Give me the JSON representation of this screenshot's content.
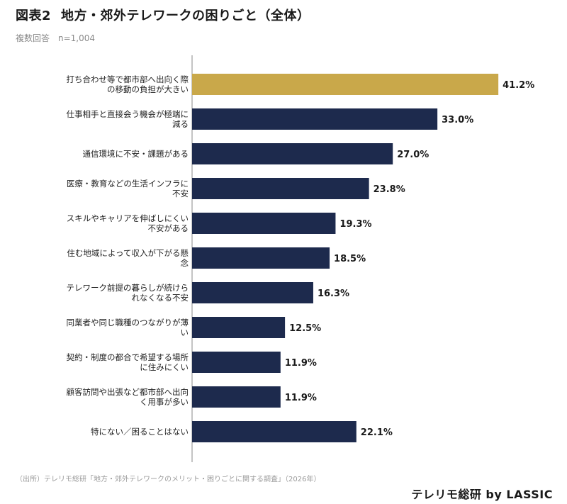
{
  "header": {
    "figure_number": "図表2",
    "title": "地方・郊外テレワークの困りごと（全体）",
    "answer_type": "複数回答",
    "sample_size": "n=1,004"
  },
  "footer": {
    "source": "（出所）テレリモ総研「地方・郊外テレワークのメリット・困りごとに関する調査」（2026年）",
    "brand": "テレリモ総研 by LASSIC"
  },
  "colors": {
    "highlight_bar": "#c9a84a",
    "bar": "#1d2a4d",
    "axis": "#888888"
  },
  "chart_data": {
    "type": "bar",
    "orientation": "horizontal",
    "unit": "%",
    "xlim": [
      0,
      45
    ],
    "grid": false,
    "highlight_index": 0,
    "categories": [
      [
        "打ち合わせ等で都市部へ出向く際",
        "の移動の負担が大きい"
      ],
      [
        "仕事相手と直接会う機会が極端に",
        "減る"
      ],
      [
        "通信環境に不安・課題がある"
      ],
      [
        "医療・教育などの生活インフラに",
        "不安"
      ],
      [
        "スキルやキャリアを伸ばしにくい",
        "不安がある"
      ],
      [
        "住む地域によって収入が下がる懸",
        "念"
      ],
      [
        "テレワーク前提の暮らしが続けら",
        "れなくなる不安"
      ],
      [
        "同業者や同じ職種のつながりが薄",
        "い"
      ],
      [
        "契約・制度の都合で希望する場所",
        "に住みにくい"
      ],
      [
        "顧客訪問や出張など都市部へ出向",
        "く用事が多い"
      ],
      [
        "特にない／困ることはない"
      ]
    ],
    "values": [
      41.2,
      33.0,
      27.0,
      23.8,
      19.3,
      18.5,
      16.3,
      12.5,
      11.9,
      11.9,
      22.1
    ],
    "value_labels": [
      "41.2%",
      "33.0%",
      "27.0%",
      "23.8%",
      "19.3%",
      "18.5%",
      "16.3%",
      "12.5%",
      "11.9%",
      "11.9%",
      "22.1%"
    ]
  }
}
